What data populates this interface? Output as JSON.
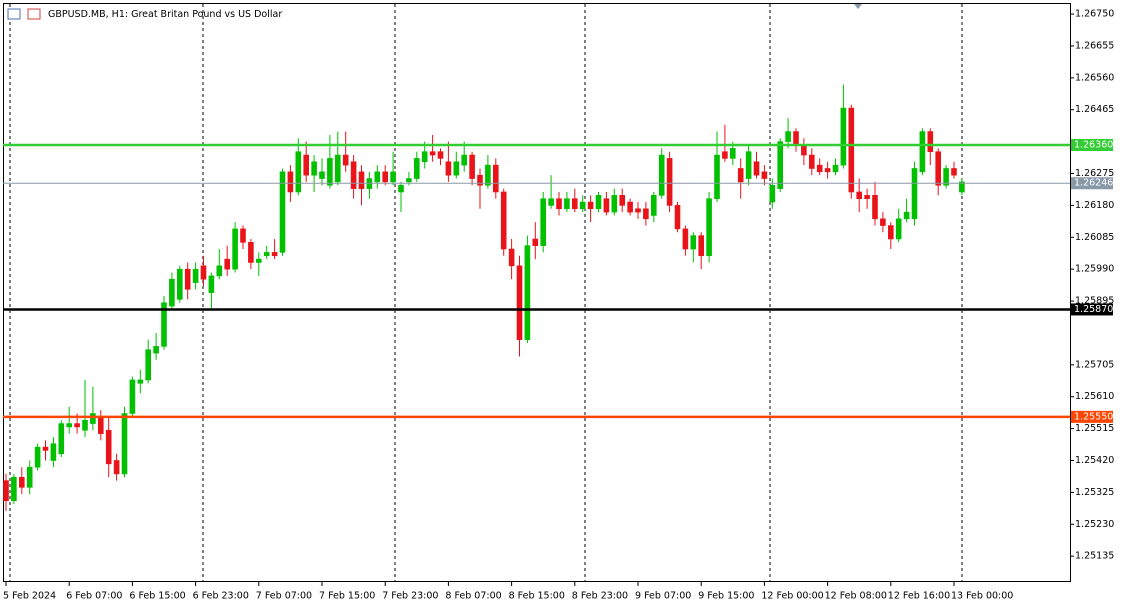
{
  "chart_data": {
    "type": "candlestick",
    "title": "GBPUSD.MB, H1:  Great Britan Pound vs US Dollar",
    "up_color": "#00c000",
    "down_color": "#e8141a",
    "ylim": [
      1.25058,
      1.26783
    ],
    "yticks": [
      {
        "value": 1.2675,
        "label": "1.26750"
      },
      {
        "value": 1.26655,
        "label": "1.26655"
      },
      {
        "value": 1.2656,
        "label": "1.26560"
      },
      {
        "value": 1.26465,
        "label": "1.26465"
      },
      {
        "value": 1.26275,
        "label": "1.26275"
      },
      {
        "value": 1.2618,
        "label": "1.26180"
      },
      {
        "value": 1.26085,
        "label": "1.26085"
      },
      {
        "value": 1.2599,
        "label": "1.25990"
      },
      {
        "value": 1.25895,
        "label": "1.25895"
      },
      {
        "value": 1.25705,
        "label": "1.25705"
      },
      {
        "value": 1.2561,
        "label": "1.25610"
      },
      {
        "value": 1.25515,
        "label": "1.25515"
      },
      {
        "value": 1.2542,
        "label": "1.25420"
      },
      {
        "value": 1.25325,
        "label": "1.25325"
      },
      {
        "value": 1.2523,
        "label": "1.25230"
      },
      {
        "value": 1.25135,
        "label": "1.25135"
      }
    ],
    "levels": [
      {
        "value": 1.2636,
        "label": "1.26360",
        "color": "#32cd32"
      },
      {
        "value": 1.26246,
        "label": "1.26246",
        "color": "#8a99a8"
      },
      {
        "value": 1.2587,
        "label": "1.25870",
        "color": "#000000"
      },
      {
        "value": 1.2555,
        "label": "1.25550",
        "color": "#ff4500"
      }
    ],
    "categories": [
      "5 Feb 2024",
      null,
      null,
      null,
      null,
      null,
      null,
      null,
      "6 Feb 07:00",
      null,
      null,
      null,
      null,
      null,
      null,
      null,
      "6 Feb 15:00",
      null,
      null,
      null,
      null,
      null,
      null,
      null,
      "6 Feb 23:00",
      null,
      null,
      null,
      null,
      null,
      null,
      null,
      "7 Feb 07:00",
      null,
      null,
      null,
      null,
      null,
      null,
      null,
      "7 Feb 15:00",
      null,
      null,
      null,
      null,
      null,
      null,
      null,
      "7 Feb 23:00",
      null,
      null,
      null,
      null,
      null,
      null,
      null,
      "8 Feb 07:00",
      null,
      null,
      null,
      null,
      null,
      null,
      null,
      "8 Feb 15:00",
      null,
      null,
      null,
      null,
      null,
      null,
      null,
      "8 Feb 23:00",
      null,
      null,
      null,
      null,
      null,
      null,
      null,
      "9 Feb 07:00",
      null,
      null,
      null,
      null,
      null,
      null,
      null,
      "9 Feb 15:00",
      null,
      null,
      null,
      null,
      null,
      null,
      null,
      "12 Feb 00:00",
      null,
      null,
      null,
      null,
      null,
      null,
      null,
      "12 Feb 08:00",
      null,
      null,
      null,
      null,
      null,
      null,
      null,
      "12 Feb 16:00",
      null,
      null,
      null,
      null,
      null,
      null,
      null,
      "13 Feb 00:00",
      null
    ],
    "ohlc": [
      [
        1.2536,
        1.2538,
        1.2527,
        1.253
      ],
      [
        1.253,
        1.2538,
        1.2529,
        1.2537
      ],
      [
        1.2537,
        1.254,
        1.2532,
        1.2534
      ],
      [
        1.2534,
        1.2542,
        1.2532,
        1.254
      ],
      [
        1.254,
        1.2547,
        1.2539,
        1.2546
      ],
      [
        1.2546,
        1.2548,
        1.2542,
        1.2545
      ],
      [
        1.2542,
        1.2549,
        1.254,
        1.2547
      ],
      [
        1.2544,
        1.2554,
        1.2543,
        1.2553
      ],
      [
        1.2552,
        1.2558,
        1.255,
        1.2553
      ],
      [
        1.2553,
        1.2556,
        1.255,
        1.2552
      ],
      [
        1.2551,
        1.2566,
        1.2549,
        1.2554
      ],
      [
        1.2553,
        1.2564,
        1.2551,
        1.2556
      ],
      [
        1.2555,
        1.2557,
        1.2548,
        1.255
      ],
      [
        1.2551,
        1.2555,
        1.2537,
        1.2541
      ],
      [
        1.2542,
        1.2544,
        1.2536,
        1.2538
      ],
      [
        1.2538,
        1.2558,
        1.2537,
        1.2556
      ],
      [
        1.2556,
        1.2567,
        1.2555,
        1.2566
      ],
      [
        1.2565,
        1.2569,
        1.2562,
        1.2566
      ],
      [
        1.2566,
        1.2578,
        1.2565,
        1.2575
      ],
      [
        1.2574,
        1.258,
        1.2572,
        1.2576
      ],
      [
        1.2576,
        1.2591,
        1.2575,
        1.2589
      ],
      [
        1.2588,
        1.2598,
        1.2587,
        1.2596
      ],
      [
        1.259,
        1.26,
        1.2589,
        1.2599
      ],
      [
        1.2599,
        1.2601,
        1.259,
        1.2593
      ],
      [
        1.2595,
        1.2601,
        1.2593,
        1.2599
      ],
      [
        1.26,
        1.2603,
        1.2594,
        1.2596
      ],
      [
        1.2592,
        1.2598,
        1.2587,
        1.2597
      ],
      [
        1.2597,
        1.2605,
        1.2596,
        1.26
      ],
      [
        1.2602,
        1.2606,
        1.2597,
        1.2599
      ],
      [
        1.2599,
        1.2613,
        1.2598,
        1.2611
      ],
      [
        1.2611,
        1.2612,
        1.2605,
        1.2607
      ],
      [
        1.2607,
        1.2608,
        1.2599,
        1.2601
      ],
      [
        1.2601,
        1.2604,
        1.2597,
        1.2602
      ],
      [
        1.2603,
        1.2606,
        1.2602,
        1.2604
      ],
      [
        1.2604,
        1.2608,
        1.2602,
        1.2603
      ],
      [
        1.2604,
        1.2629,
        1.2603,
        1.2628
      ],
      [
        1.2628,
        1.263,
        1.2619,
        1.2622
      ],
      [
        1.2622,
        1.2638,
        1.2621,
        1.2634
      ],
      [
        1.2633,
        1.2637,
        1.2625,
        1.2627
      ],
      [
        1.2627,
        1.2633,
        1.2622,
        1.2631
      ],
      [
        1.2626,
        1.2632,
        1.2624,
        1.2628
      ],
      [
        1.2624,
        1.2639,
        1.2623,
        1.2632
      ],
      [
        1.2625,
        1.264,
        1.2624,
        1.2633
      ],
      [
        1.2633,
        1.264,
        1.2628,
        1.263
      ],
      [
        1.2631,
        1.2633,
        1.262,
        1.2623
      ],
      [
        1.2628,
        1.263,
        1.2618,
        1.2623
      ],
      [
        1.2623,
        1.2628,
        1.262,
        1.2626
      ],
      [
        1.2625,
        1.263,
        1.2623,
        1.2628
      ],
      [
        1.2628,
        1.263,
        1.2624,
        1.2625
      ],
      [
        1.2625,
        1.2634,
        1.2624,
        1.2628
      ],
      [
        1.2622,
        1.2625,
        1.2616,
        1.2624
      ],
      [
        1.2625,
        1.2628,
        1.2624,
        1.2626
      ],
      [
        1.2626,
        1.2634,
        1.2625,
        1.2632
      ],
      [
        1.2631,
        1.2637,
        1.2629,
        1.2634
      ],
      [
        1.2634,
        1.2639,
        1.2631,
        1.2633
      ],
      [
        1.2634,
        1.2635,
        1.263,
        1.2632
      ],
      [
        1.2631,
        1.2637,
        1.2625,
        1.2627
      ],
      [
        1.2627,
        1.2634,
        1.2626,
        1.2631
      ],
      [
        1.263,
        1.2637,
        1.2628,
        1.2633
      ],
      [
        1.2633,
        1.2634,
        1.2624,
        1.2626
      ],
      [
        1.2627,
        1.2629,
        1.2617,
        1.2624
      ],
      [
        1.2624,
        1.2633,
        1.2623,
        1.263
      ],
      [
        1.263,
        1.2632,
        1.262,
        1.2622
      ],
      [
        1.2622,
        1.2623,
        1.2603,
        1.2605
      ],
      [
        1.2605,
        1.2608,
        1.2596,
        1.26
      ],
      [
        1.26,
        1.2603,
        1.2573,
        1.2578
      ],
      [
        1.2578,
        1.2609,
        1.2577,
        1.2606
      ],
      [
        1.2608,
        1.2613,
        1.2602,
        1.2606
      ],
      [
        1.2606,
        1.2622,
        1.2604,
        1.262
      ],
      [
        1.2618,
        1.2627,
        1.2617,
        1.262
      ],
      [
        1.262,
        1.2622,
        1.2615,
        1.2617
      ],
      [
        1.2617,
        1.2622,
        1.2616,
        1.262
      ],
      [
        1.262,
        1.2623,
        1.2616,
        1.2617
      ],
      [
        1.2617,
        1.2621,
        1.2616,
        1.2619
      ],
      [
        1.2619,
        1.2621,
        1.2613,
        1.2617
      ],
      [
        1.2617,
        1.2622,
        1.2616,
        1.2621
      ],
      [
        1.262,
        1.2622,
        1.2615,
        1.2616
      ],
      [
        1.2616,
        1.2623,
        1.2615,
        1.2621
      ],
      [
        1.2621,
        1.2623,
        1.2616,
        1.2618
      ],
      [
        1.2619,
        1.262,
        1.2615,
        1.2616
      ],
      [
        1.2617,
        1.2619,
        1.2614,
        1.2616
      ],
      [
        1.2617,
        1.2619,
        1.2612,
        1.2614
      ],
      [
        1.2615,
        1.2622,
        1.2613,
        1.2621
      ],
      [
        1.2621,
        1.2635,
        1.262,
        1.2633
      ],
      [
        1.2632,
        1.2634,
        1.2616,
        1.2618
      ],
      [
        1.2618,
        1.2619,
        1.261,
        1.2611
      ],
      [
        1.2611,
        1.2612,
        1.2603,
        1.2605
      ],
      [
        1.2605,
        1.261,
        1.2601,
        1.2609
      ],
      [
        1.2609,
        1.261,
        1.2599,
        1.2603
      ],
      [
        1.2603,
        1.2622,
        1.2601,
        1.262
      ],
      [
        1.262,
        1.264,
        1.2619,
        1.2633
      ],
      [
        1.2634,
        1.2642,
        1.2631,
        1.2632
      ],
      [
        1.2632,
        1.2637,
        1.263,
        1.2635
      ],
      [
        1.2629,
        1.2632,
        1.262,
        1.2625
      ],
      [
        1.2626,
        1.2636,
        1.2624,
        1.2634
      ],
      [
        1.2631,
        1.2634,
        1.2626,
        1.2627
      ],
      [
        1.2628,
        1.263,
        1.2624,
        1.2626
      ],
      [
        1.2619,
        1.2626,
        1.2617,
        1.2624
      ],
      [
        1.2623,
        1.2638,
        1.2622,
        1.2637
      ],
      [
        1.2637,
        1.2644,
        1.2635,
        1.264
      ],
      [
        1.264,
        1.2641,
        1.2634,
        1.2636
      ],
      [
        1.2636,
        1.2638,
        1.263,
        1.2633
      ],
      [
        1.2633,
        1.2635,
        1.2627,
        1.2629
      ],
      [
        1.263,
        1.2632,
        1.2627,
        1.2628
      ],
      [
        1.2629,
        1.2631,
        1.2626,
        1.2628
      ],
      [
        1.2628,
        1.2632,
        1.2627,
        1.263
      ],
      [
        1.263,
        1.2654,
        1.2629,
        1.2647
      ],
      [
        1.2647,
        1.2648,
        1.262,
        1.2622
      ],
      [
        1.2622,
        1.2626,
        1.2616,
        1.262
      ],
      [
        1.2621,
        1.2623,
        1.2617,
        1.262
      ],
      [
        1.2621,
        1.2625,
        1.2612,
        1.2614
      ],
      [
        1.2614,
        1.2616,
        1.261,
        1.2612
      ],
      [
        1.2612,
        1.2613,
        1.2605,
        1.2608
      ],
      [
        1.2608,
        1.2617,
        1.2607,
        1.2614
      ],
      [
        1.2614,
        1.262,
        1.2613,
        1.2616
      ],
      [
        1.2614,
        1.2631,
        1.2612,
        1.2629
      ],
      [
        1.2628,
        1.2641,
        1.2627,
        1.264
      ],
      [
        1.264,
        1.2641,
        1.263,
        1.2634
      ],
      [
        1.2634,
        1.2635,
        1.2621,
        1.2624
      ],
      [
        1.2624,
        1.263,
        1.2623,
        1.2629
      ],
      [
        1.2629,
        1.2631,
        1.2626,
        1.2627
      ],
      [
        1.2622,
        1.2626,
        1.2621,
        1.2625
      ]
    ]
  }
}
